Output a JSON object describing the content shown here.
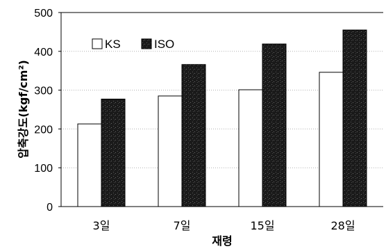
{
  "chart_data": {
    "type": "bar",
    "categories": [
      "3일",
      "7일",
      "15일",
      "28일"
    ],
    "series": [
      {
        "name": "KS",
        "values": [
          213,
          285,
          301,
          346
        ],
        "color": "#ffffff"
      },
      {
        "name": "ISO",
        "values": [
          277,
          366,
          419,
          455
        ],
        "color": "#141414"
      }
    ],
    "xlabel": "재령",
    "ylabel": "압축강도(kgf/cm²)",
    "ylim": [
      0,
      500
    ],
    "yticks": [
      0,
      100,
      200,
      300,
      400,
      500
    ],
    "grid": true,
    "legend": "top-left"
  }
}
